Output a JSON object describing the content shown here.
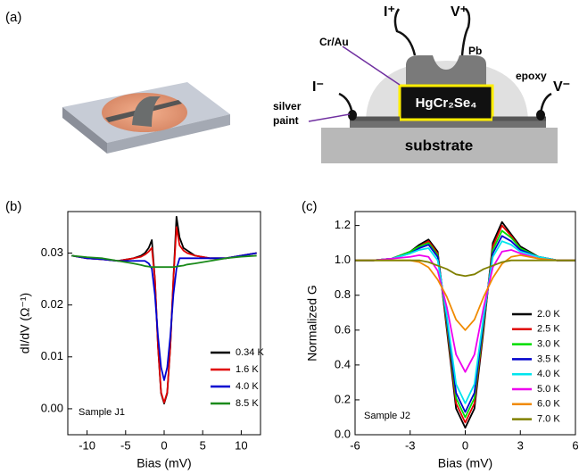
{
  "diagram": {
    "panel_label": "(a)",
    "labels": {
      "cr_au": "Cr/Au",
      "i_plus": "I⁺",
      "v_plus": "V⁺",
      "pb": "Pb",
      "epoxy": "epoxy",
      "i_minus": "I⁻",
      "v_minus": "V⁻",
      "silver_paint": [
        "silver",
        "paint"
      ],
      "crystal": "HgCr₂Se₄",
      "substrate": "substrate"
    }
  },
  "chart_data": [
    {
      "type": "line",
      "panel_label": "(b)",
      "xlabel": "Bias (mV)",
      "ylabel": "dI/dV (Ω⁻¹)",
      "annotation": "Sample J1",
      "xlim": [
        -12.5,
        12.5
      ],
      "ylim": [
        -0.005,
        0.038
      ],
      "xticks": [
        -10,
        -5,
        0,
        5,
        10
      ],
      "yticks": [
        {
          "value": 0,
          "label": "0.00"
        },
        {
          "value": 0.01,
          "label": "0.01"
        },
        {
          "value": 0.02,
          "label": "0.02"
        },
        {
          "value": 0.03,
          "label": "0.03"
        }
      ],
      "x": [
        -12,
        -10,
        -8,
        -6,
        -4,
        -3,
        -2.5,
        -2,
        -1.6,
        -1.2,
        -0.8,
        -0.4,
        0,
        0.4,
        0.8,
        1.2,
        1.6,
        2,
        2.5,
        3,
        4,
        6,
        8,
        10,
        12
      ],
      "series": [
        {
          "name": "0.34 K",
          "color": "#000000",
          "values": [
            0.0295,
            0.029,
            0.0288,
            0.0285,
            0.029,
            0.0295,
            0.03,
            0.031,
            0.0325,
            0.025,
            0.012,
            0.003,
            0.001,
            0.003,
            0.012,
            0.025,
            0.037,
            0.033,
            0.031,
            0.0305,
            0.0295,
            0.029,
            0.029,
            0.0295,
            0.03
          ]
        },
        {
          "name": "1.6 K",
          "color": "#e00000",
          "values": [
            0.0295,
            0.029,
            0.0288,
            0.0285,
            0.029,
            0.0293,
            0.0297,
            0.0303,
            0.031,
            0.025,
            0.012,
            0.0032,
            0.0012,
            0.0032,
            0.012,
            0.025,
            0.035,
            0.0315,
            0.0305,
            0.03,
            0.0295,
            0.029,
            0.029,
            0.0295,
            0.03
          ]
        },
        {
          "name": "4.0 K",
          "color": "#0000d0",
          "values": [
            0.0295,
            0.029,
            0.0288,
            0.0285,
            0.0285,
            0.0285,
            0.0285,
            0.028,
            0.027,
            0.022,
            0.014,
            0.008,
            0.0055,
            0.008,
            0.014,
            0.022,
            0.027,
            0.029,
            0.029,
            0.029,
            0.029,
            0.029,
            0.029,
            0.0295,
            0.03
          ]
        },
        {
          "name": "8.5 K",
          "color": "#1a8a1a",
          "values": [
            0.0295,
            0.0292,
            0.029,
            0.0285,
            0.028,
            0.0277,
            0.0275,
            0.0274,
            0.0273,
            0.0273,
            0.0273,
            0.0273,
            0.0273,
            0.0273,
            0.0273,
            0.0273,
            0.0274,
            0.0275,
            0.0276,
            0.0278,
            0.028,
            0.0285,
            0.029,
            0.0293,
            0.0295
          ]
        }
      ]
    },
    {
      "type": "line",
      "panel_label": "(c)",
      "xlabel": "Bias (mV)",
      "ylabel": "Normalized G",
      "annotation": "Sample J2",
      "xlim": [
        -6,
        6
      ],
      "ylim": [
        0,
        1.28
      ],
      "xticks": [
        -6,
        -3,
        0,
        3,
        6
      ],
      "yticks": [
        {
          "value": 0,
          "label": "0.0"
        },
        0.2,
        0.4,
        0.6,
        0.8,
        {
          "value": 1,
          "label": "1.0"
        },
        1.2
      ],
      "x": [
        -6,
        -5,
        -4,
        -3,
        -2.5,
        -2,
        -1.5,
        -1,
        -0.5,
        0,
        0.5,
        1,
        1.5,
        2,
        2.5,
        3,
        4,
        5,
        6
      ],
      "series": [
        {
          "name": "2.0 K",
          "color": "#000000",
          "values": [
            1,
            1,
            1.01,
            1.05,
            1.09,
            1.12,
            1.05,
            0.6,
            0.15,
            0.04,
            0.15,
            0.6,
            1.1,
            1.22,
            1.15,
            1.08,
            1.02,
            1,
            1
          ]
        },
        {
          "name": "2.5 K",
          "color": "#e00000",
          "values": [
            1,
            1,
            1.01,
            1.05,
            1.08,
            1.11,
            1.04,
            0.62,
            0.18,
            0.07,
            0.18,
            0.62,
            1.08,
            1.2,
            1.14,
            1.07,
            1.02,
            1,
            1
          ]
        },
        {
          "name": "3.0 K",
          "color": "#00dd00",
          "values": [
            1,
            1,
            1.01,
            1.05,
            1.08,
            1.1,
            1.03,
            0.64,
            0.21,
            0.1,
            0.21,
            0.64,
            1.06,
            1.17,
            1.13,
            1.07,
            1.02,
            1,
            1
          ]
        },
        {
          "name": "3.5 K",
          "color": "#0000cc",
          "values": [
            1,
            1,
            1.01,
            1.04,
            1.07,
            1.09,
            1.02,
            0.66,
            0.24,
            0.13,
            0.24,
            0.66,
            1.04,
            1.14,
            1.11,
            1.06,
            1.02,
            1,
            1
          ]
        },
        {
          "name": "4.0 K",
          "color": "#00e5ee",
          "values": [
            1,
            1,
            1.01,
            1.04,
            1.06,
            1.07,
            1.0,
            0.68,
            0.29,
            0.18,
            0.29,
            0.68,
            1.02,
            1.11,
            1.09,
            1.05,
            1.02,
            1,
            1
          ]
        },
        {
          "name": "5.0 K",
          "color": "#ee00ee",
          "values": [
            1,
            1,
            1.01,
            1.02,
            1.03,
            1.02,
            0.94,
            0.73,
            0.46,
            0.36,
            0.46,
            0.73,
            0.96,
            1.05,
            1.06,
            1.04,
            1.01,
            1,
            1
          ]
        },
        {
          "name": "6.0 K",
          "color": "#f08a00",
          "values": [
            1,
            1,
            1,
            1,
            0.99,
            0.96,
            0.89,
            0.79,
            0.66,
            0.6,
            0.66,
            0.79,
            0.9,
            0.98,
            1.02,
            1.03,
            1.01,
            1,
            1
          ]
        },
        {
          "name": "7.0 K",
          "color": "#808000",
          "values": [
            1,
            1,
            1,
            1,
            1,
            0.99,
            0.97,
            0.95,
            0.92,
            0.91,
            0.92,
            0.95,
            0.97,
            0.99,
            1,
            1,
            1,
            1,
            1
          ]
        }
      ]
    }
  ]
}
